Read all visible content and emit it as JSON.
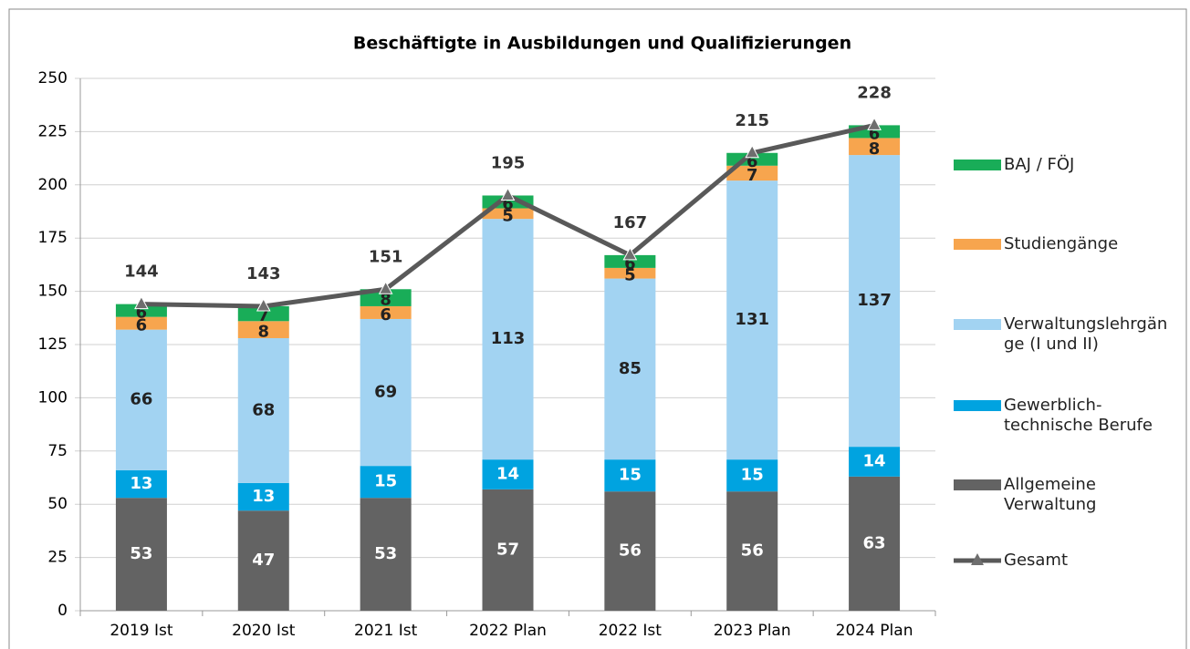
{
  "chart_data": {
    "type": "bar",
    "stacked": true,
    "title": "Beschäftigte in Ausbildungen und Qualifizierungen",
    "categories": [
      "2019 Ist",
      "2020 Ist",
      "2021 Ist",
      "2022 Plan",
      "2022 Ist",
      "2023 Plan",
      "2024 Plan"
    ],
    "series": [
      {
        "name": "Allgemeine Verwaltung",
        "color": "#636363",
        "values": [
          53,
          47,
          53,
          57,
          56,
          56,
          63
        ]
      },
      {
        "name": "Gewerblich-technische Berufe",
        "color": "#00a3e0",
        "values": [
          13,
          13,
          15,
          14,
          15,
          15,
          14
        ]
      },
      {
        "name": "Verwaltungslehrgänge (I und II)",
        "color": "#a2d3f2",
        "values": [
          66,
          68,
          69,
          113,
          85,
          131,
          137
        ]
      },
      {
        "name": "Studiengänge",
        "color": "#f7a54e",
        "values": [
          6,
          8,
          6,
          5,
          5,
          7,
          8
        ]
      },
      {
        "name": "BAJ / FÖJ",
        "color": "#19ad58",
        "values": [
          6,
          7,
          8,
          6,
          6,
          6,
          6
        ]
      },
      {
        "name": "Gesamt",
        "type": "line",
        "color": "#595959",
        "values": [
          144,
          143,
          151,
          195,
          167,
          215,
          228
        ]
      }
    ],
    "ylim": [
      0,
      250
    ],
    "yticks": [
      0,
      25,
      50,
      75,
      100,
      125,
      150,
      175,
      200,
      225,
      250
    ],
    "grid": true,
    "legend": "right"
  }
}
